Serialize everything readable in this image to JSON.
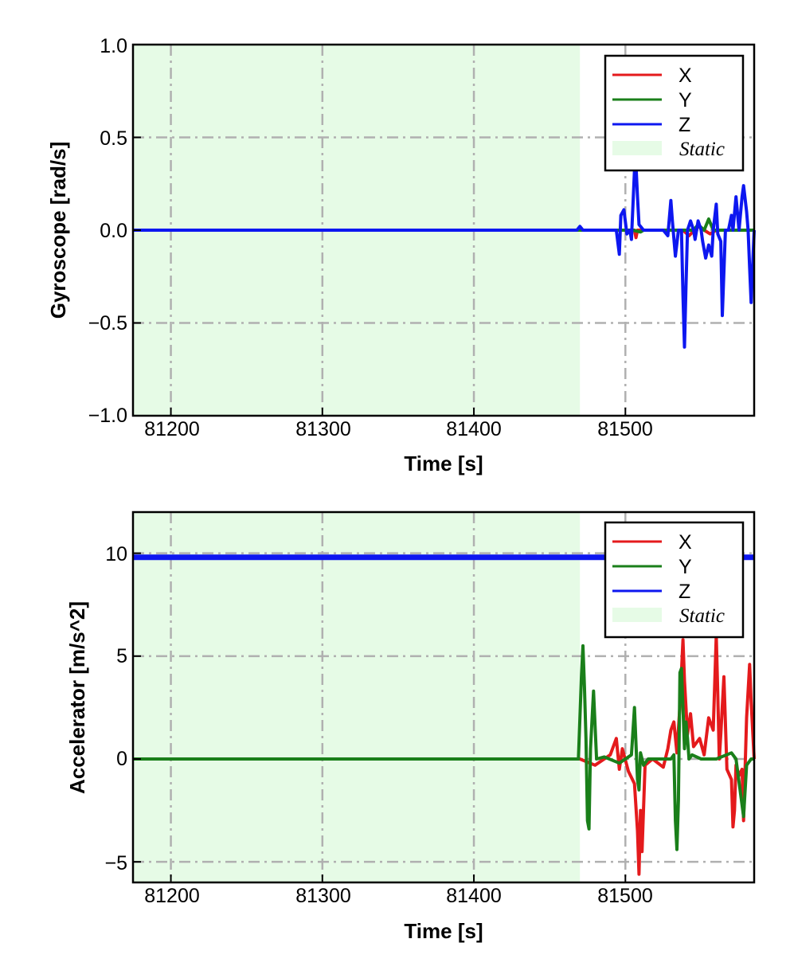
{
  "colors": {
    "x": "#e41a1c",
    "y": "#1a7f1a",
    "z": "#0d17f0",
    "static_fill": "#e6fbe6",
    "grid": "#b0b0b0"
  },
  "chart_data": [
    {
      "type": "line",
      "xlabel": "Time [s]",
      "ylabel": "Gyroscope [rad/s]",
      "xlim": [
        81175,
        81585
      ],
      "ylim": [
        -1.0,
        1.0
      ],
      "xticks": [
        81200,
        81300,
        81400,
        81500
      ],
      "yticks": [
        -1.0,
        -0.5,
        0.0,
        0.5,
        1.0
      ],
      "ytick_labels": [
        "−1.0",
        "−0.5",
        "0.0",
        "0.5",
        "1.0"
      ],
      "xtick_labels": [
        "81200",
        "81300",
        "81400",
        "81500"
      ],
      "grid": true,
      "legend_position": "top-right",
      "static_region": [
        81175,
        81470
      ],
      "legend": [
        "X",
        "Y",
        "Z",
        "Static"
      ],
      "series": [
        {
          "name": "X",
          "color": "#e41a1c",
          "x": [
            81175,
            81470,
            81506,
            81507,
            81508,
            81510,
            81538,
            81542,
            81548,
            81552,
            81556,
            81560,
            81585
          ],
          "y": [
            0.0,
            0.0,
            0.0,
            -0.04,
            0.0,
            0.0,
            0.0,
            -0.03,
            0.02,
            0.0,
            -0.02,
            0.0,
            0.0
          ]
        },
        {
          "name": "Y",
          "color": "#1a7f1a",
          "x": [
            81175,
            81505,
            81510,
            81512,
            81545,
            81548,
            81552,
            81555,
            81558,
            81585
          ],
          "y": [
            0.0,
            0.0,
            -0.01,
            0.0,
            0.0,
            0.03,
            0.0,
            0.06,
            0.0,
            0.0
          ]
        },
        {
          "name": "Z",
          "color": "#0d17f0",
          "x": [
            81175,
            81468,
            81470,
            81472,
            81494,
            81496,
            81497,
            81499,
            81501,
            81503,
            81504,
            81506,
            81507,
            81508,
            81509,
            81510,
            81512,
            81515,
            81525,
            81528,
            81530,
            81531,
            81533,
            81535,
            81537,
            81538,
            81539,
            81540,
            81541,
            81543,
            81545,
            81546,
            81548,
            81550,
            81551,
            81553,
            81555,
            81557,
            81558,
            81560,
            81561,
            81563,
            81564,
            81566,
            81568,
            81570,
            81571,
            81573,
            81575,
            81577,
            81578,
            81580,
            81581,
            81582,
            81583,
            81585
          ],
          "y": [
            0.0,
            0.0,
            0.02,
            0.0,
            0.0,
            -0.13,
            0.08,
            0.11,
            -0.02,
            0.0,
            -0.05,
            0.32,
            0.35,
            0.18,
            0.03,
            0.02,
            0.0,
            0.0,
            0.0,
            -0.03,
            0.16,
            0.05,
            -0.14,
            0.0,
            0.0,
            -0.35,
            -0.63,
            -0.3,
            0.0,
            0.05,
            0.0,
            -0.05,
            0.05,
            0.0,
            -0.06,
            -0.15,
            -0.08,
            -0.14,
            0.0,
            0.14,
            -0.02,
            -0.06,
            -0.46,
            0.0,
            0.0,
            0.08,
            0.0,
            0.18,
            0.0,
            0.18,
            0.24,
            0.1,
            0.0,
            -0.2,
            -0.39,
            0.0
          ]
        }
      ]
    },
    {
      "type": "line",
      "xlabel": "Time [s]",
      "ylabel": "Accelerator [m/s^2]",
      "xlim": [
        81175,
        81585
      ],
      "ylim": [
        -6,
        12
      ],
      "xticks": [
        81200,
        81300,
        81400,
        81500
      ],
      "yticks": [
        -5,
        0,
        5,
        10
      ],
      "ytick_labels": [
        "−5",
        "0",
        "5",
        "10"
      ],
      "xtick_labels": [
        "81200",
        "81300",
        "81400",
        "81500"
      ],
      "grid": true,
      "legend_position": "top-right",
      "static_region": [
        81175,
        81470
      ],
      "legend": [
        "X",
        "Y",
        "Z",
        "Static"
      ],
      "series": [
        {
          "name": "X",
          "color": "#e41a1c",
          "x": [
            81175,
            81470,
            81480,
            81490,
            81494,
            81496,
            81498,
            81502,
            81506,
            81508,
            81509,
            81510,
            81511,
            81513,
            81518,
            81525,
            81528,
            81530,
            81532,
            81534,
            81536,
            81538,
            81539,
            81541,
            81543,
            81545,
            81549,
            81552,
            81555,
            81558,
            81560,
            81561,
            81562,
            81563,
            81565,
            81567,
            81570,
            81571,
            81572,
            81573,
            81575,
            81577,
            81578,
            81580,
            81582,
            81583,
            81585
          ],
          "y": [
            0.0,
            0.0,
            -0.3,
            0.2,
            1.0,
            -0.5,
            0.5,
            -0.6,
            -1.2,
            -3.5,
            -5.6,
            -2.5,
            -4.5,
            -0.3,
            0.0,
            -0.4,
            0.5,
            1.4,
            1.8,
            0.3,
            2.6,
            5.8,
            3.8,
            1.2,
            2.2,
            0.6,
            1.0,
            0.2,
            2.0,
            1.4,
            6.0,
            3.2,
            0.0,
            1.2,
            4.0,
            -0.5,
            -1.0,
            -3.3,
            -2.5,
            -0.3,
            -0.8,
            -0.5,
            -3.0,
            2.0,
            4.6,
            2.8,
            0.0
          ]
        },
        {
          "name": "Y",
          "color": "#1a7f1a",
          "x": [
            81175,
            81469,
            81471,
            81472,
            81473,
            81474,
            81475,
            81476,
            81477,
            81479,
            81481,
            81486,
            81496,
            81504,
            81506,
            81508,
            81509,
            81510,
            81511,
            81512,
            81515,
            81530,
            81532,
            81533,
            81534,
            81535,
            81536,
            81537,
            81538,
            81539,
            81540,
            81541,
            81542,
            81544,
            81550,
            81560,
            81570,
            81573,
            81578,
            81580,
            81583,
            81585
          ],
          "y": [
            0.0,
            0.0,
            4.0,
            5.5,
            3.5,
            1.0,
            -3.0,
            -3.4,
            0.5,
            3.3,
            0.0,
            0.1,
            -0.2,
            0.2,
            2.5,
            -1.0,
            -1.5,
            0.3,
            0.0,
            -0.3,
            0.0,
            0.0,
            0.2,
            -3.0,
            -4.4,
            -2.0,
            4.2,
            4.4,
            2.5,
            0.5,
            1.8,
            1.0,
            0.0,
            0.2,
            0.0,
            0.0,
            0.3,
            0.0,
            -2.8,
            -0.3,
            0.0,
            0.0
          ]
        },
        {
          "name": "Z",
          "color": "#0d17f0",
          "x": [
            81175,
            81585
          ],
          "y": [
            9.8,
            9.8
          ]
        }
      ]
    }
  ]
}
